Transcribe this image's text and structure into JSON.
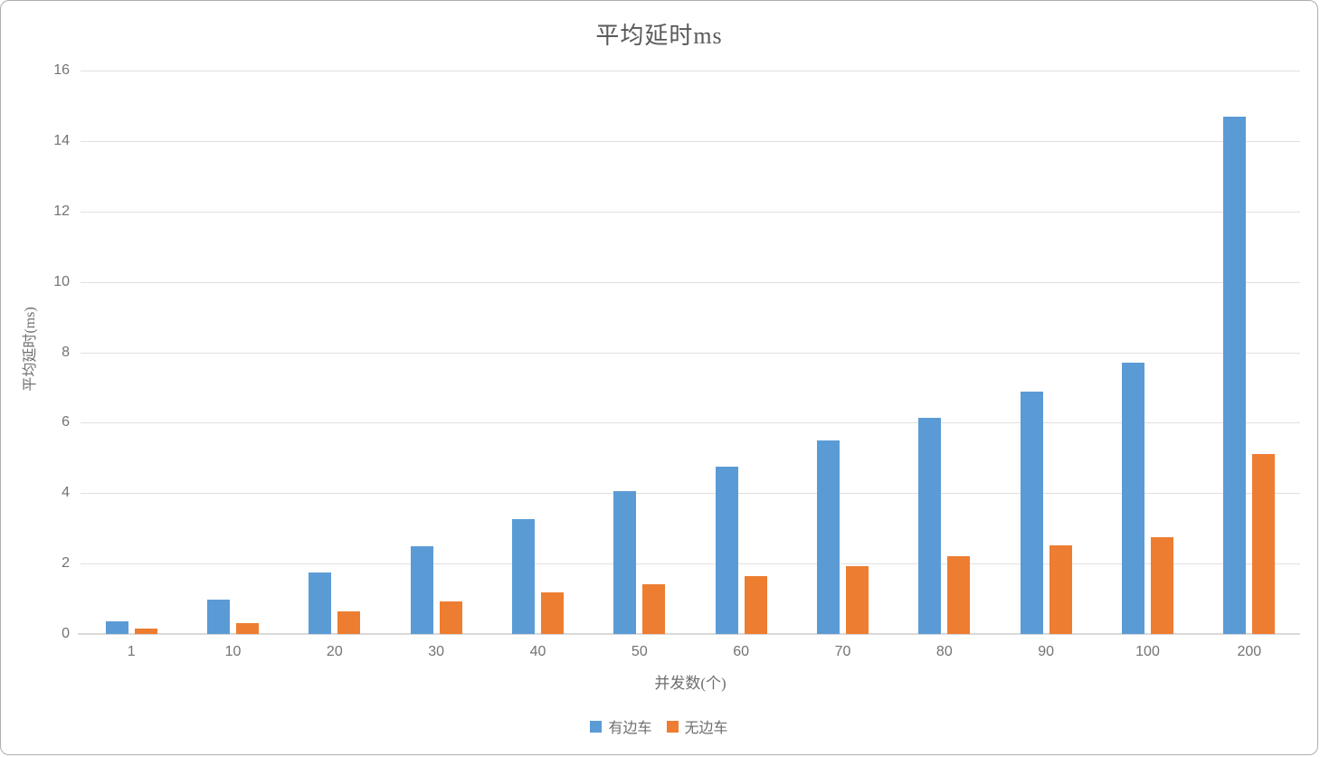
{
  "chart_data": {
    "type": "bar",
    "title": "平均延时ms",
    "xlabel": "并发数(个)",
    "ylabel": "平均延时(ms)",
    "categories": [
      "1",
      "10",
      "20",
      "30",
      "40",
      "50",
      "60",
      "70",
      "80",
      "90",
      "100",
      "200"
    ],
    "series": [
      {
        "name": "有边车",
        "color": "#5B9BD5",
        "values": [
          0.35,
          0.97,
          1.75,
          2.48,
          3.27,
          4.05,
          4.75,
          5.5,
          6.15,
          6.88,
          7.7,
          14.7
        ]
      },
      {
        "name": "无边车",
        "color": "#ED7D31",
        "values": [
          0.15,
          0.31,
          0.65,
          0.92,
          1.18,
          1.41,
          1.65,
          1.93,
          2.2,
          2.53,
          2.75,
          5.1
        ]
      }
    ],
    "ylim": [
      0,
      16
    ],
    "yticks": [
      0,
      2,
      4,
      6,
      8,
      10,
      12,
      14,
      16
    ],
    "grid": true,
    "legend_position": "bottom"
  },
  "colors": {
    "grid": "#e0e0e0",
    "axis_baseline": "#d9d9d9",
    "tick_text": "#737373",
    "title_text": "#595959"
  }
}
